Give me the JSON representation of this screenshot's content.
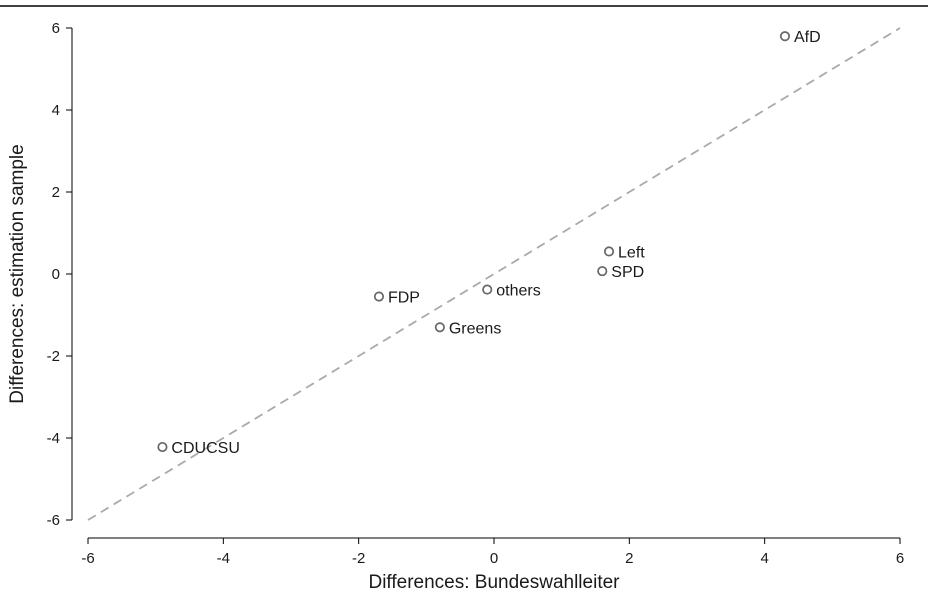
{
  "chart_data": {
    "type": "scatter",
    "title": "",
    "xlabel": "Differences: Bundeswahlleiter",
    "ylabel": "Differences: estimation sample",
    "xlim": [
      -6,
      6
    ],
    "ylim": [
      -6,
      6
    ],
    "xticks": [
      -6,
      -4,
      -2,
      0,
      2,
      4,
      6
    ],
    "yticks": [
      -6,
      -4,
      -2,
      0,
      2,
      4,
      6
    ],
    "grid": false,
    "reference_line": {
      "style": "dashed",
      "from": [
        -6,
        -6
      ],
      "to": [
        6,
        6
      ],
      "color": "#aaaaaa"
    },
    "marker_color": "#666666",
    "points": [
      {
        "label": "AfD",
        "x": 4.3,
        "y": 5.8
      },
      {
        "label": "Left",
        "x": 1.7,
        "y": 0.55
      },
      {
        "label": "SPD",
        "x": 1.6,
        "y": 0.07
      },
      {
        "label": "others",
        "x": -0.1,
        "y": -0.38
      },
      {
        "label": "FDP",
        "x": -1.7,
        "y": -0.55
      },
      {
        "label": "Greens",
        "x": -0.8,
        "y": -1.3
      },
      {
        "label": "CDUCSU",
        "x": -4.9,
        "y": -4.22
      }
    ]
  }
}
